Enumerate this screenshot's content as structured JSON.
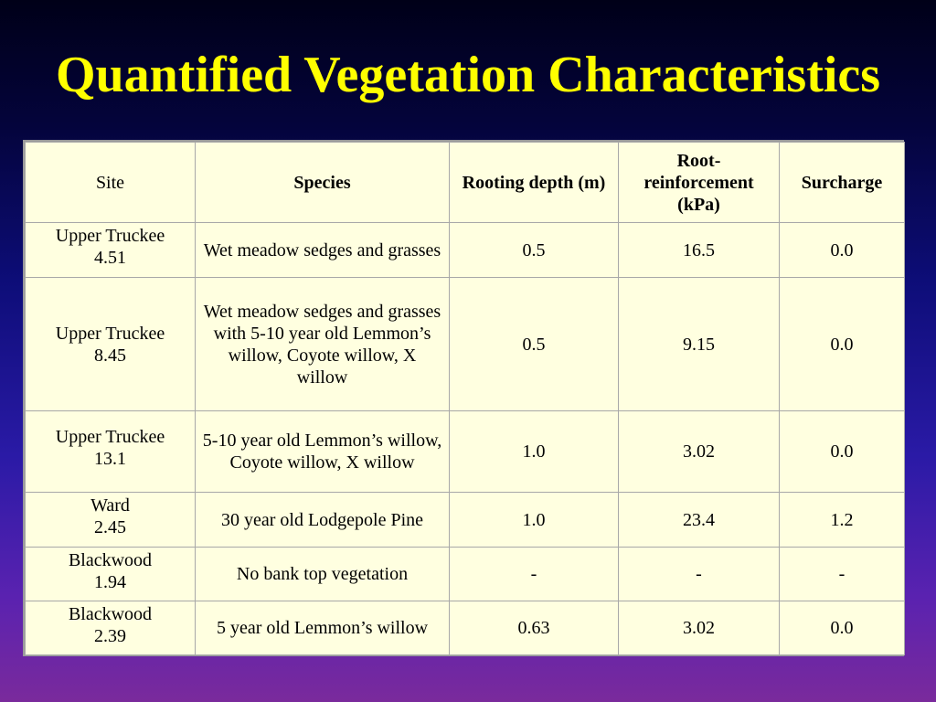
{
  "slide": {
    "title": "Quantified Vegetation Characteristics"
  },
  "table": {
    "headers": {
      "site": "Site",
      "species": "Species",
      "rooting_depth": "Rooting depth (m)",
      "root_reinforcement": "Root-reinforcement (kPa)",
      "surcharge": "Surcharge"
    },
    "rows": [
      {
        "site_name": "Upper Truckee",
        "site_num": "4.51",
        "species": "Wet meadow sedges and grasses",
        "rooting_depth": "0.5",
        "root_reinforcement": "16.5",
        "surcharge": "0.0"
      },
      {
        "site_name": "Upper Truckee",
        "site_num": "8.45",
        "species": "Wet meadow sedges and grasses with 5-10 year old Lemmon’s willow, Coyote willow, X willow",
        "rooting_depth": "0.5",
        "root_reinforcement": "9.15",
        "surcharge": "0.0"
      },
      {
        "site_name": "Upper Truckee",
        "site_num": "13.1",
        "species": "5-10 year old Lemmon’s willow, Coyote willow, X willow",
        "rooting_depth": "1.0",
        "root_reinforcement": "3.02",
        "surcharge": "0.0"
      },
      {
        "site_name": "Ward",
        "site_num": "2.45",
        "species": "30 year old Lodgepole Pine",
        "rooting_depth": "1.0",
        "root_reinforcement": "23.4",
        "surcharge": "1.2"
      },
      {
        "site_name": "Blackwood",
        "site_num": "1.94",
        "species": "No bank top vegetation",
        "rooting_depth": "-",
        "root_reinforcement": "-",
        "surcharge": "-"
      },
      {
        "site_name": "Blackwood",
        "site_num": "2.39",
        "species": "5 year old Lemmon’s willow",
        "rooting_depth": "0.63",
        "root_reinforcement": "3.02",
        "surcharge": "0.0"
      }
    ]
  },
  "colors": {
    "title": "#ffff00",
    "table_background": "#ffffe0",
    "background_top": "#000018",
    "background_bottom": "#7a2a9c"
  }
}
